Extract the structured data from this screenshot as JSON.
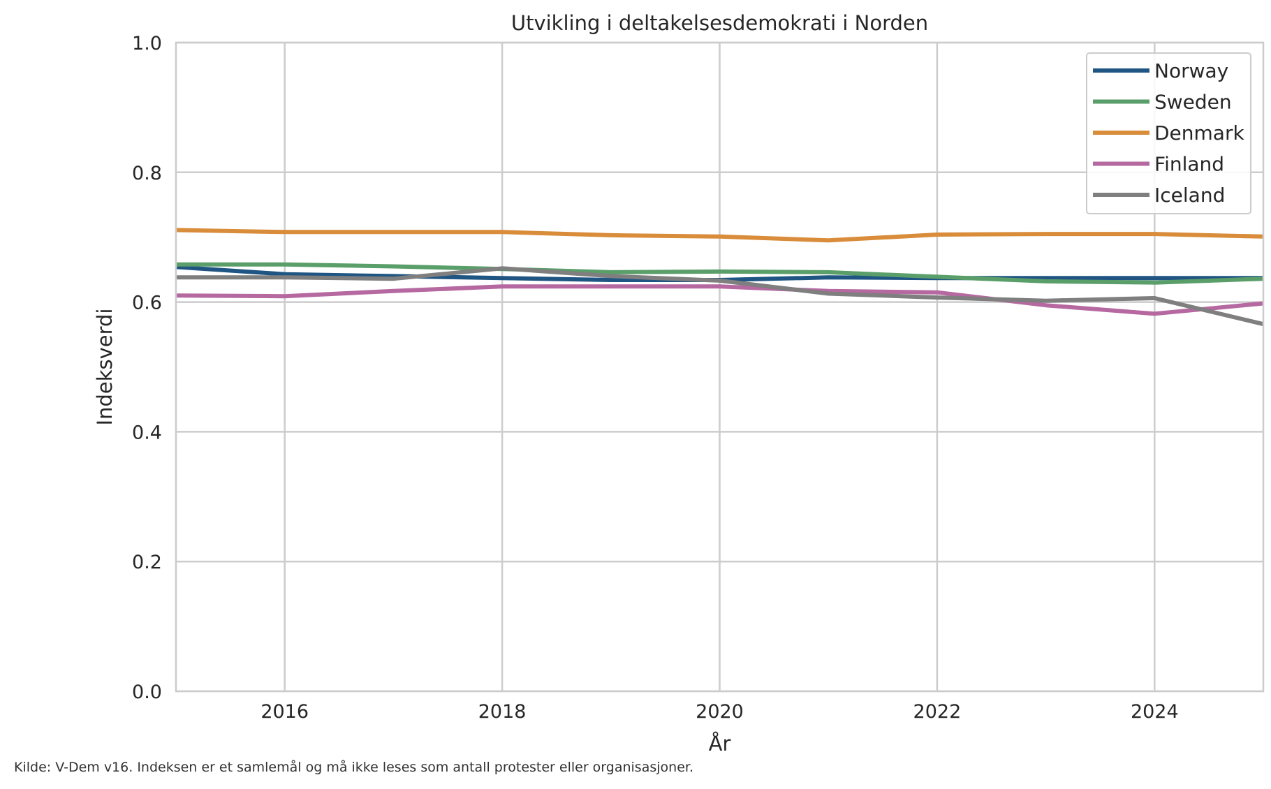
{
  "chart_data": {
    "type": "line",
    "title": "Utvikling i deltakelsesdemokrati i Norden",
    "xlabel": "År",
    "ylabel": "Indeksverdi",
    "xlim": [
      2015,
      2025
    ],
    "ylim": [
      0.0,
      1.0
    ],
    "xticks": [
      2016,
      2018,
      2020,
      2022,
      2024
    ],
    "yticks": [
      0.0,
      0.2,
      0.4,
      0.6,
      0.8,
      1.0
    ],
    "ytick_labels": [
      "0.0",
      "0.2",
      "0.4",
      "0.6",
      "0.8",
      "1.0"
    ],
    "grid": true,
    "legend_position": "top-right",
    "x": [
      2015,
      2016,
      2017,
      2018,
      2019,
      2020,
      2021,
      2022,
      2023,
      2024,
      2025
    ],
    "series": [
      {
        "name": "Norway",
        "color": "#1f5582",
        "values": [
          0.654,
          0.643,
          0.64,
          0.637,
          0.634,
          0.634,
          0.638,
          0.637,
          0.637,
          0.637,
          0.637
        ]
      },
      {
        "name": "Sweden",
        "color": "#5a9e69",
        "values": [
          0.658,
          0.658,
          0.655,
          0.651,
          0.646,
          0.647,
          0.646,
          0.639,
          0.632,
          0.63,
          0.636
        ]
      },
      {
        "name": "Denmark",
        "color": "#d98c3a",
        "values": [
          0.711,
          0.708,
          0.708,
          0.708,
          0.703,
          0.701,
          0.695,
          0.704,
          0.705,
          0.705,
          0.701
        ]
      },
      {
        "name": "Finland",
        "color": "#b569a0",
        "values": [
          0.61,
          0.609,
          0.617,
          0.624,
          0.624,
          0.624,
          0.617,
          0.615,
          0.595,
          0.582,
          0.598
        ]
      },
      {
        "name": "Iceland",
        "color": "#7f7f7f",
        "values": [
          0.638,
          0.638,
          0.636,
          0.652,
          0.64,
          0.633,
          0.613,
          0.607,
          0.602,
          0.606,
          0.566
        ]
      }
    ]
  },
  "footnote": "Kilde: V-Dem v16. Indeksen er et samlemål og må ikke leses som antall protester eller organisasjoner."
}
